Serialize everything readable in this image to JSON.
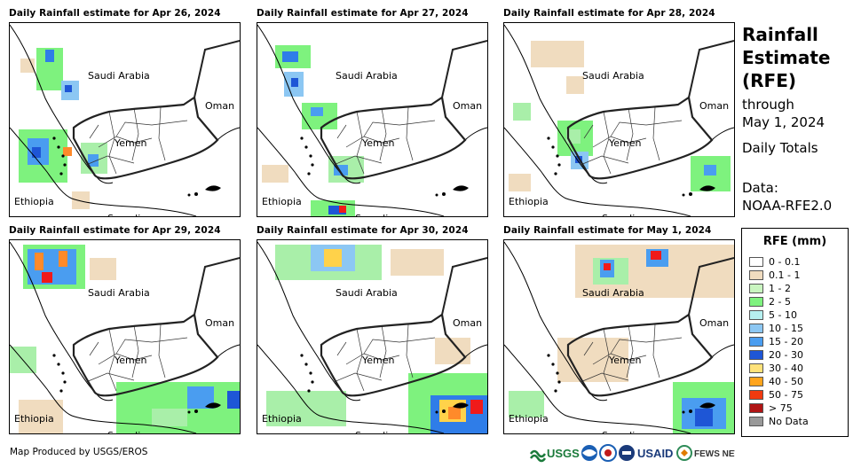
{
  "panels": [
    {
      "title": "Daily Rainfall estimate for Apr 26, 2024",
      "rain": [
        {
          "x": 30,
          "y": 28,
          "w": 30,
          "h": 48,
          "c": "#7ef27e"
        },
        {
          "x": 40,
          "y": 30,
          "w": 10,
          "h": 14,
          "c": "#2f7de8"
        },
        {
          "x": 58,
          "y": 65,
          "w": 20,
          "h": 22,
          "c": "#8cc7f3"
        },
        {
          "x": 62,
          "y": 70,
          "w": 8,
          "h": 8,
          "c": "#1e56d6"
        },
        {
          "x": 10,
          "y": 120,
          "w": 55,
          "h": 60,
          "c": "#7ef27e"
        },
        {
          "x": 20,
          "y": 130,
          "w": 24,
          "h": 30,
          "c": "#4a9df0"
        },
        {
          "x": 25,
          "y": 140,
          "w": 10,
          "h": 12,
          "c": "#1e56d6"
        },
        {
          "x": 60,
          "y": 140,
          "w": 10,
          "h": 10,
          "c": "#ff8a2a"
        },
        {
          "x": 80,
          "y": 135,
          "w": 30,
          "h": 35,
          "c": "#a9efa9"
        },
        {
          "x": 88,
          "y": 148,
          "w": 12,
          "h": 14,
          "c": "#4a9df0"
        },
        {
          "x": 70,
          "y": 190,
          "w": 20,
          "h": 20,
          "c": "#f0dcbf"
        },
        {
          "x": 12,
          "y": 40,
          "w": 16,
          "h": 16,
          "c": "#f0dcbf"
        }
      ]
    },
    {
      "title": "Daily Rainfall estimate for Apr 27, 2024",
      "rain": [
        {
          "x": 20,
          "y": 25,
          "w": 40,
          "h": 26,
          "c": "#7ef27e"
        },
        {
          "x": 28,
          "y": 32,
          "w": 18,
          "h": 12,
          "c": "#2f7de8"
        },
        {
          "x": 30,
          "y": 55,
          "w": 22,
          "h": 28,
          "c": "#8cc7f3"
        },
        {
          "x": 38,
          "y": 62,
          "w": 8,
          "h": 10,
          "c": "#1e56d6"
        },
        {
          "x": 50,
          "y": 90,
          "w": 40,
          "h": 30,
          "c": "#7ef27e"
        },
        {
          "x": 60,
          "y": 95,
          "w": 14,
          "h": 10,
          "c": "#4a9df0"
        },
        {
          "x": 80,
          "y": 150,
          "w": 40,
          "h": 30,
          "c": "#a9efa9"
        },
        {
          "x": 86,
          "y": 160,
          "w": 16,
          "h": 12,
          "c": "#4a9df0"
        },
        {
          "x": 60,
          "y": 200,
          "w": 50,
          "h": 18,
          "c": "#7ef27e"
        },
        {
          "x": 80,
          "y": 206,
          "w": 20,
          "h": 10,
          "c": "#1e56d6"
        },
        {
          "x": 92,
          "y": 206,
          "w": 8,
          "h": 8,
          "c": "#f01a1a"
        },
        {
          "x": 5,
          "y": 160,
          "w": 30,
          "h": 20,
          "c": "#f0dcbf"
        }
      ]
    },
    {
      "title": "Daily Rainfall estimate for Apr 28, 2024",
      "rain": [
        {
          "x": 30,
          "y": 20,
          "w": 60,
          "h": 30,
          "c": "#f0dcbf"
        },
        {
          "x": 70,
          "y": 60,
          "w": 20,
          "h": 20,
          "c": "#f0dcbf"
        },
        {
          "x": 60,
          "y": 110,
          "w": 40,
          "h": 40,
          "c": "#7ef27e"
        },
        {
          "x": 70,
          "y": 120,
          "w": 16,
          "h": 16,
          "c": "#a9efa9"
        },
        {
          "x": 75,
          "y": 145,
          "w": 20,
          "h": 20,
          "c": "#8cc7f3"
        },
        {
          "x": 80,
          "y": 150,
          "w": 8,
          "h": 8,
          "c": "#1e56d6"
        },
        {
          "x": 210,
          "y": 150,
          "w": 45,
          "h": 40,
          "c": "#7ef27e"
        },
        {
          "x": 225,
          "y": 160,
          "w": 14,
          "h": 12,
          "c": "#4a9df0"
        },
        {
          "x": 10,
          "y": 90,
          "w": 20,
          "h": 20,
          "c": "#a9efa9"
        },
        {
          "x": 5,
          "y": 170,
          "w": 25,
          "h": 20,
          "c": "#f0dcbf"
        }
      ]
    },
    {
      "title": "Daily Rainfall estimate for Apr 29, 2024",
      "rain": [
        {
          "x": 15,
          "y": 5,
          "w": 70,
          "h": 50,
          "c": "#7ef27e"
        },
        {
          "x": 20,
          "y": 10,
          "w": 55,
          "h": 40,
          "c": "#4a9df0"
        },
        {
          "x": 28,
          "y": 14,
          "w": 10,
          "h": 20,
          "c": "#ff8a2a"
        },
        {
          "x": 55,
          "y": 12,
          "w": 10,
          "h": 18,
          "c": "#ff8a2a"
        },
        {
          "x": 36,
          "y": 36,
          "w": 12,
          "h": 12,
          "c": "#f01a1a"
        },
        {
          "x": 90,
          "y": 20,
          "w": 30,
          "h": 25,
          "c": "#f0dcbf"
        },
        {
          "x": 0,
          "y": 120,
          "w": 30,
          "h": 30,
          "c": "#a9efa9"
        },
        {
          "x": 120,
          "y": 160,
          "w": 140,
          "h": 58,
          "c": "#7ef27e"
        },
        {
          "x": 200,
          "y": 165,
          "w": 30,
          "h": 25,
          "c": "#4a9df0"
        },
        {
          "x": 245,
          "y": 170,
          "w": 14,
          "h": 20,
          "c": "#1e56d6"
        },
        {
          "x": 160,
          "y": 190,
          "w": 40,
          "h": 20,
          "c": "#a9efa9"
        },
        {
          "x": 10,
          "y": 180,
          "w": 50,
          "h": 38,
          "c": "#f0dcbf"
        }
      ]
    },
    {
      "title": "Daily Rainfall estimate for Apr 30, 2024",
      "rain": [
        {
          "x": 20,
          "y": 5,
          "w": 120,
          "h": 40,
          "c": "#a9efa9"
        },
        {
          "x": 60,
          "y": 5,
          "w": 50,
          "h": 30,
          "c": "#8cc7f3"
        },
        {
          "x": 75,
          "y": 10,
          "w": 20,
          "h": 20,
          "c": "#ffd24a"
        },
        {
          "x": 150,
          "y": 10,
          "w": 60,
          "h": 30,
          "c": "#f0dcbf"
        },
        {
          "x": 200,
          "y": 110,
          "w": 40,
          "h": 30,
          "c": "#f0dcbf"
        },
        {
          "x": 170,
          "y": 150,
          "w": 89,
          "h": 68,
          "c": "#7ef27e"
        },
        {
          "x": 195,
          "y": 175,
          "w": 64,
          "h": 43,
          "c": "#2f7de8"
        },
        {
          "x": 205,
          "y": 180,
          "w": 30,
          "h": 25,
          "c": "#ffd24a"
        },
        {
          "x": 215,
          "y": 188,
          "w": 14,
          "h": 14,
          "c": "#ff8a2a"
        },
        {
          "x": 240,
          "y": 180,
          "w": 14,
          "h": 16,
          "c": "#f01a1a"
        },
        {
          "x": 10,
          "y": 170,
          "w": 90,
          "h": 40,
          "c": "#a9efa9"
        }
      ]
    },
    {
      "title": "Daily Rainfall estimate for May 1, 2024",
      "rain": [
        {
          "x": 80,
          "y": 5,
          "w": 180,
          "h": 60,
          "c": "#f0dcbf"
        },
        {
          "x": 100,
          "y": 20,
          "w": 40,
          "h": 30,
          "c": "#a9efa9"
        },
        {
          "x": 108,
          "y": 22,
          "w": 16,
          "h": 20,
          "c": "#4a9df0"
        },
        {
          "x": 112,
          "y": 26,
          "w": 8,
          "h": 8,
          "c": "#f01a1a"
        },
        {
          "x": 160,
          "y": 10,
          "w": 25,
          "h": 20,
          "c": "#4a9df0"
        },
        {
          "x": 165,
          "y": 12,
          "w": 12,
          "h": 10,
          "c": "#f01a1a"
        },
        {
          "x": 60,
          "y": 110,
          "w": 80,
          "h": 50,
          "c": "#f0dcbf"
        },
        {
          "x": 190,
          "y": 160,
          "w": 69,
          "h": 58,
          "c": "#7ef27e"
        },
        {
          "x": 200,
          "y": 178,
          "w": 50,
          "h": 35,
          "c": "#4a9df0"
        },
        {
          "x": 215,
          "y": 190,
          "w": 20,
          "h": 20,
          "c": "#1e56d6"
        },
        {
          "x": 5,
          "y": 170,
          "w": 40,
          "h": 30,
          "c": "#a9efa9"
        }
      ]
    }
  ],
  "labels": {
    "saudi": "Saudi Arabia",
    "oman": "Oman",
    "yemen": "Yemen",
    "ethiopia": "Ethiopia",
    "somalia": "Somalia"
  },
  "side": {
    "title_line1": "Rainfall",
    "title_line2": "Estimate",
    "title_line3": "(RFE)",
    "through": "through",
    "date": "May 1, 2024",
    "totals": "Daily Totals",
    "data_label": "Data:",
    "data_source": "NOAA-RFE2.0"
  },
  "legend": {
    "title": "RFE (mm)",
    "items": [
      {
        "label": "0 - 0.1",
        "color": "#ffffff"
      },
      {
        "label": "0.1 - 1",
        "color": "#f0dcbf"
      },
      {
        "label": "1 - 2",
        "color": "#c9f5c0"
      },
      {
        "label": "2 - 5",
        "color": "#7ef27e"
      },
      {
        "label": "5 - 10",
        "color": "#b6f0f0"
      },
      {
        "label": "10 - 15",
        "color": "#8cc7f3"
      },
      {
        "label": "15 - 20",
        "color": "#4a9df0"
      },
      {
        "label": "20 - 30",
        "color": "#1e56d6"
      },
      {
        "label": "30 - 40",
        "color": "#ffe27a"
      },
      {
        "label": "40 - 50",
        "color": "#ffa41c"
      },
      {
        "label": "50 - 75",
        "color": "#f03a10"
      },
      {
        "label": "> 75",
        "color": "#b01414"
      },
      {
        "label": "No Data",
        "color": "#999999"
      }
    ]
  },
  "footer": "Map Produced by USGS/EROS",
  "logos": {
    "usgs": "USGS",
    "usaid": "USAID",
    "fews": "FEWS NET"
  }
}
